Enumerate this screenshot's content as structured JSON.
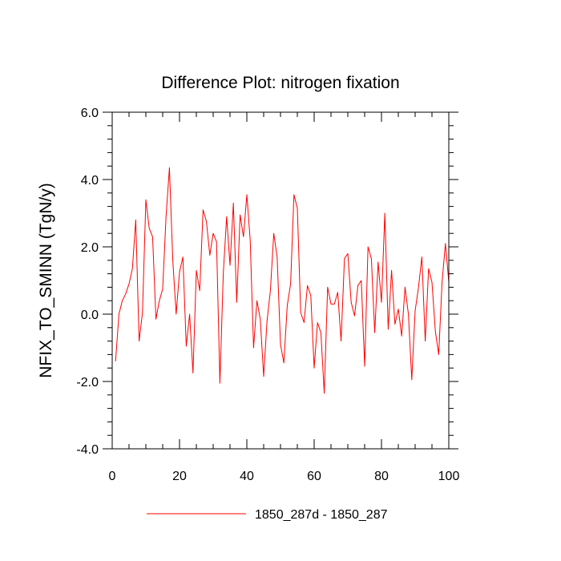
{
  "chart_data": {
    "type": "line",
    "title": "Difference Plot: nitrogen fixation",
    "xlabel": "",
    "ylabel": "NFIX_TO_SMINN  (TgN/y)",
    "xlim": [
      0,
      100
    ],
    "ylim": [
      -4.0,
      6.0
    ],
    "x_ticks": [
      0,
      20,
      40,
      60,
      80,
      100
    ],
    "x_tick_labels": [
      "0",
      "20",
      "40",
      "60",
      "80",
      "100"
    ],
    "y_ticks": [
      -4,
      -2,
      0,
      2,
      4,
      6
    ],
    "y_tick_labels": [
      "-4.0",
      "-2.0",
      "0.0",
      "2.0",
      "4.0",
      "6.0"
    ],
    "grid": false,
    "legend": "bottom-center",
    "series": [
      {
        "name": "1850_287d - 1850_287",
        "color": "#ff0000",
        "x": [
          1,
          2,
          3,
          4,
          5,
          6,
          7,
          8,
          9,
          10,
          11,
          12,
          13,
          14,
          15,
          16,
          17,
          18,
          19,
          20,
          21,
          22,
          23,
          24,
          25,
          26,
          27,
          28,
          29,
          30,
          31,
          32,
          33,
          34,
          35,
          36,
          37,
          38,
          39,
          40,
          41,
          42,
          43,
          44,
          45,
          46,
          47,
          48,
          49,
          50,
          51,
          52,
          53,
          54,
          55,
          56,
          57,
          58,
          59,
          60,
          61,
          62,
          63,
          64,
          65,
          66,
          67,
          68,
          69,
          70,
          71,
          72,
          73,
          74,
          75,
          76,
          77,
          78,
          79,
          80,
          81,
          82,
          83,
          84,
          85,
          86,
          87,
          88,
          89,
          90,
          91,
          92,
          93,
          94,
          95,
          96,
          97,
          98,
          99,
          100
        ],
        "y": [
          -1.4,
          0.0,
          0.4,
          0.6,
          0.9,
          1.35,
          2.8,
          -0.8,
          0.05,
          3.4,
          2.55,
          2.3,
          -0.15,
          0.4,
          0.75,
          2.9,
          4.35,
          1.6,
          0.0,
          1.25,
          1.7,
          -0.95,
          0.0,
          -1.75,
          1.3,
          0.7,
          3.1,
          2.75,
          1.75,
          2.4,
          2.15,
          -2.05,
          1.2,
          2.9,
          1.45,
          3.3,
          0.35,
          2.95,
          2.3,
          3.55,
          2.2,
          -1.0,
          0.4,
          -0.15,
          -1.85,
          -0.2,
          0.7,
          2.4,
          1.7,
          -0.9,
          -1.45,
          0.25,
          0.9,
          3.55,
          3.15,
          0.05,
          -0.25,
          0.85,
          0.55,
          -1.6,
          -0.25,
          -0.55,
          -2.35,
          0.8,
          0.3,
          0.3,
          0.65,
          -0.8,
          1.65,
          1.8,
          0.35,
          -0.05,
          0.85,
          1.0,
          -1.55,
          2.0,
          1.65,
          -0.55,
          1.55,
          0.35,
          3.0,
          -0.45,
          1.3,
          -0.3,
          0.15,
          -0.65,
          0.8,
          0.0,
          -1.95,
          0.1,
          0.8,
          1.7,
          -0.8,
          1.35,
          0.95,
          -0.5,
          -1.2,
          0.95,
          2.1,
          0.95
        ]
      }
    ]
  }
}
